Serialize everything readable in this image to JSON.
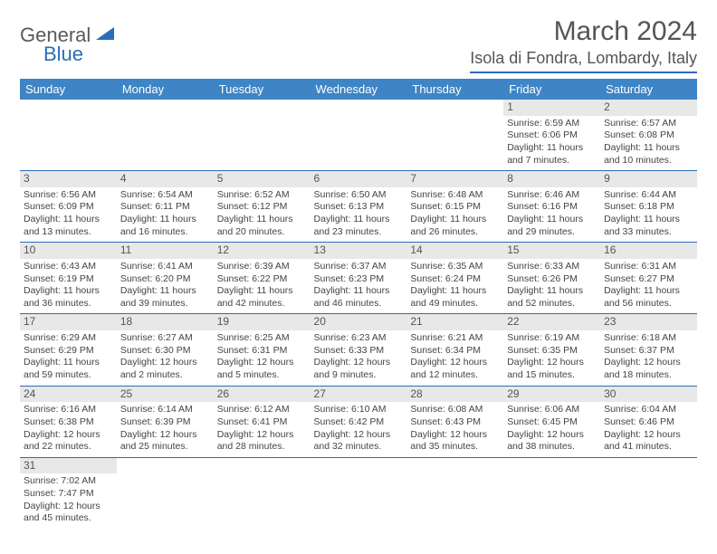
{
  "logo": {
    "text1": "General",
    "text2": "Blue"
  },
  "title": "March 2024",
  "location": "Isola di Fondra, Lombardy, Italy",
  "weekdays": [
    "Sunday",
    "Monday",
    "Tuesday",
    "Wednesday",
    "Thursday",
    "Friday",
    "Saturday"
  ],
  "colors": {
    "header_bg": "#3f84c4",
    "accent": "#2a6db8",
    "daynum_bg": "#e8e8e8",
    "text": "#444444"
  },
  "weeks": [
    [
      null,
      null,
      null,
      null,
      null,
      {
        "n": "1",
        "sunrise": "Sunrise: 6:59 AM",
        "sunset": "Sunset: 6:06 PM",
        "daylight": "Daylight: 11 hours and 7 minutes."
      },
      {
        "n": "2",
        "sunrise": "Sunrise: 6:57 AM",
        "sunset": "Sunset: 6:08 PM",
        "daylight": "Daylight: 11 hours and 10 minutes."
      }
    ],
    [
      {
        "n": "3",
        "sunrise": "Sunrise: 6:56 AM",
        "sunset": "Sunset: 6:09 PM",
        "daylight": "Daylight: 11 hours and 13 minutes."
      },
      {
        "n": "4",
        "sunrise": "Sunrise: 6:54 AM",
        "sunset": "Sunset: 6:11 PM",
        "daylight": "Daylight: 11 hours and 16 minutes."
      },
      {
        "n": "5",
        "sunrise": "Sunrise: 6:52 AM",
        "sunset": "Sunset: 6:12 PM",
        "daylight": "Daylight: 11 hours and 20 minutes."
      },
      {
        "n": "6",
        "sunrise": "Sunrise: 6:50 AM",
        "sunset": "Sunset: 6:13 PM",
        "daylight": "Daylight: 11 hours and 23 minutes."
      },
      {
        "n": "7",
        "sunrise": "Sunrise: 6:48 AM",
        "sunset": "Sunset: 6:15 PM",
        "daylight": "Daylight: 11 hours and 26 minutes."
      },
      {
        "n": "8",
        "sunrise": "Sunrise: 6:46 AM",
        "sunset": "Sunset: 6:16 PM",
        "daylight": "Daylight: 11 hours and 29 minutes."
      },
      {
        "n": "9",
        "sunrise": "Sunrise: 6:44 AM",
        "sunset": "Sunset: 6:18 PM",
        "daylight": "Daylight: 11 hours and 33 minutes."
      }
    ],
    [
      {
        "n": "10",
        "sunrise": "Sunrise: 6:43 AM",
        "sunset": "Sunset: 6:19 PM",
        "daylight": "Daylight: 11 hours and 36 minutes."
      },
      {
        "n": "11",
        "sunrise": "Sunrise: 6:41 AM",
        "sunset": "Sunset: 6:20 PM",
        "daylight": "Daylight: 11 hours and 39 minutes."
      },
      {
        "n": "12",
        "sunrise": "Sunrise: 6:39 AM",
        "sunset": "Sunset: 6:22 PM",
        "daylight": "Daylight: 11 hours and 42 minutes."
      },
      {
        "n": "13",
        "sunrise": "Sunrise: 6:37 AM",
        "sunset": "Sunset: 6:23 PM",
        "daylight": "Daylight: 11 hours and 46 minutes."
      },
      {
        "n": "14",
        "sunrise": "Sunrise: 6:35 AM",
        "sunset": "Sunset: 6:24 PM",
        "daylight": "Daylight: 11 hours and 49 minutes."
      },
      {
        "n": "15",
        "sunrise": "Sunrise: 6:33 AM",
        "sunset": "Sunset: 6:26 PM",
        "daylight": "Daylight: 11 hours and 52 minutes."
      },
      {
        "n": "16",
        "sunrise": "Sunrise: 6:31 AM",
        "sunset": "Sunset: 6:27 PM",
        "daylight": "Daylight: 11 hours and 56 minutes."
      }
    ],
    [
      {
        "n": "17",
        "sunrise": "Sunrise: 6:29 AM",
        "sunset": "Sunset: 6:29 PM",
        "daylight": "Daylight: 11 hours and 59 minutes."
      },
      {
        "n": "18",
        "sunrise": "Sunrise: 6:27 AM",
        "sunset": "Sunset: 6:30 PM",
        "daylight": "Daylight: 12 hours and 2 minutes."
      },
      {
        "n": "19",
        "sunrise": "Sunrise: 6:25 AM",
        "sunset": "Sunset: 6:31 PM",
        "daylight": "Daylight: 12 hours and 5 minutes."
      },
      {
        "n": "20",
        "sunrise": "Sunrise: 6:23 AM",
        "sunset": "Sunset: 6:33 PM",
        "daylight": "Daylight: 12 hours and 9 minutes."
      },
      {
        "n": "21",
        "sunrise": "Sunrise: 6:21 AM",
        "sunset": "Sunset: 6:34 PM",
        "daylight": "Daylight: 12 hours and 12 minutes."
      },
      {
        "n": "22",
        "sunrise": "Sunrise: 6:19 AM",
        "sunset": "Sunset: 6:35 PM",
        "daylight": "Daylight: 12 hours and 15 minutes."
      },
      {
        "n": "23",
        "sunrise": "Sunrise: 6:18 AM",
        "sunset": "Sunset: 6:37 PM",
        "daylight": "Daylight: 12 hours and 18 minutes."
      }
    ],
    [
      {
        "n": "24",
        "sunrise": "Sunrise: 6:16 AM",
        "sunset": "Sunset: 6:38 PM",
        "daylight": "Daylight: 12 hours and 22 minutes."
      },
      {
        "n": "25",
        "sunrise": "Sunrise: 6:14 AM",
        "sunset": "Sunset: 6:39 PM",
        "daylight": "Daylight: 12 hours and 25 minutes."
      },
      {
        "n": "26",
        "sunrise": "Sunrise: 6:12 AM",
        "sunset": "Sunset: 6:41 PM",
        "daylight": "Daylight: 12 hours and 28 minutes."
      },
      {
        "n": "27",
        "sunrise": "Sunrise: 6:10 AM",
        "sunset": "Sunset: 6:42 PM",
        "daylight": "Daylight: 12 hours and 32 minutes."
      },
      {
        "n": "28",
        "sunrise": "Sunrise: 6:08 AM",
        "sunset": "Sunset: 6:43 PM",
        "daylight": "Daylight: 12 hours and 35 minutes."
      },
      {
        "n": "29",
        "sunrise": "Sunrise: 6:06 AM",
        "sunset": "Sunset: 6:45 PM",
        "daylight": "Daylight: 12 hours and 38 minutes."
      },
      {
        "n": "30",
        "sunrise": "Sunrise: 6:04 AM",
        "sunset": "Sunset: 6:46 PM",
        "daylight": "Daylight: 12 hours and 41 minutes."
      }
    ],
    [
      {
        "n": "31",
        "sunrise": "Sunrise: 7:02 AM",
        "sunset": "Sunset: 7:47 PM",
        "daylight": "Daylight: 12 hours and 45 minutes."
      },
      null,
      null,
      null,
      null,
      null,
      null
    ]
  ]
}
